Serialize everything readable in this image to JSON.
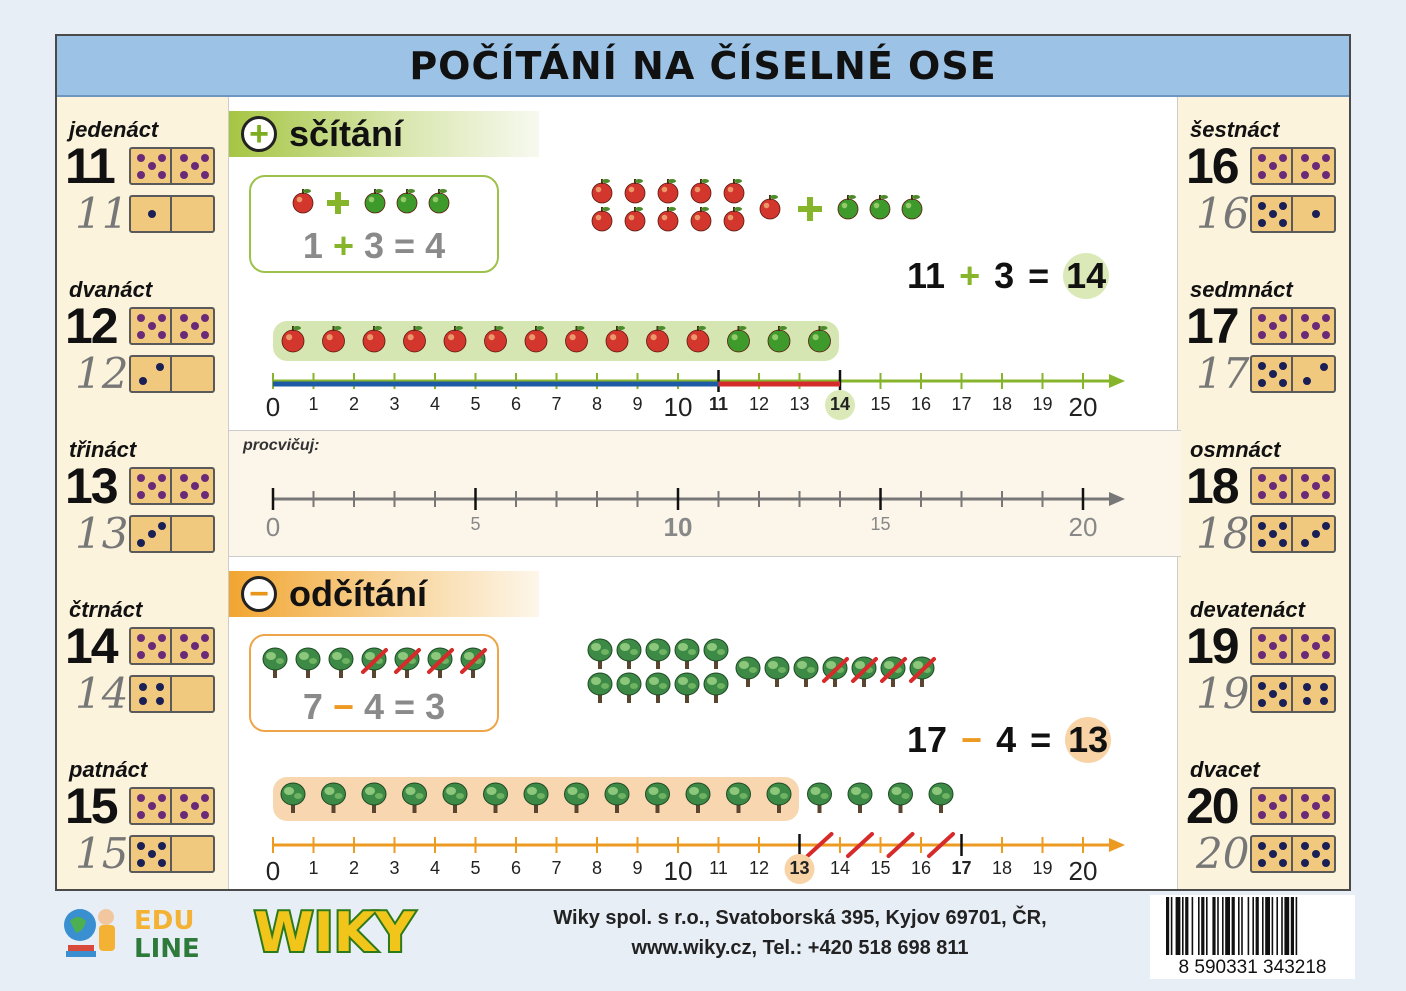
{
  "header": {
    "title": "POČÍTÁNÍ NA ČÍSELNÉ OSE"
  },
  "numbers_left": [
    {
      "word": "jedenáct",
      "number": "11",
      "hand": "11",
      "top_pips": 5,
      "bottom_pips": 1
    },
    {
      "word": "dvanáct",
      "number": "12",
      "hand": "12",
      "top_pips": 5,
      "bottom_pips": 2
    },
    {
      "word": "třináct",
      "number": "13",
      "hand": "13",
      "top_pips": 5,
      "bottom_pips": 3
    },
    {
      "word": "čtrnáct",
      "number": "14",
      "hand": "14",
      "top_pips": 5,
      "bottom_pips": 4
    },
    {
      "word": "patnáct",
      "number": "15",
      "hand": "15",
      "top_pips": 5,
      "bottom_pips": 5
    }
  ],
  "numbers_right": [
    {
      "word": "šestnáct",
      "number": "16",
      "hand": "16",
      "top_pips": 5,
      "bottom_pips": 6
    },
    {
      "word": "sedmnáct",
      "number": "17",
      "hand": "17",
      "top_pips": 5,
      "bottom_pips": 7
    },
    {
      "word": "osmnáct",
      "number": "18",
      "hand": "18",
      "top_pips": 5,
      "bottom_pips": 8
    },
    {
      "word": "devatenáct",
      "number": "19",
      "hand": "19",
      "top_pips": 5,
      "bottom_pips": 9
    },
    {
      "word": "dvacet",
      "number": "20",
      "hand": "20",
      "top_pips": 5,
      "bottom_pips": 10
    }
  ],
  "addition": {
    "heading": "sčítání",
    "icon": "plus-icon",
    "example": {
      "a": "1",
      "op": "+",
      "b": "3",
      "eq": "=",
      "res": "4"
    },
    "equation": {
      "a": "11",
      "op": "+",
      "b": "3",
      "eq": "=",
      "res": "14"
    },
    "axis_labels": [
      "0",
      "1",
      "2",
      "3",
      "4",
      "5",
      "6",
      "7",
      "8",
      "9",
      "10",
      "11",
      "12",
      "13",
      "14",
      "15",
      "16",
      "17",
      "18",
      "19",
      "20"
    ]
  },
  "practice": {
    "label": "procvičuj:",
    "axis_labels": [
      "0",
      "5",
      "10",
      "15",
      "20"
    ]
  },
  "subtraction": {
    "heading": "odčítání",
    "icon": "minus-icon",
    "example": {
      "a": "7",
      "op": "−",
      "b": "4",
      "eq": "=",
      "res": "3"
    },
    "equation": {
      "a": "17",
      "op": "−",
      "b": "4",
      "eq": "=",
      "res": "13"
    },
    "axis_labels": [
      "0",
      "1",
      "2",
      "3",
      "4",
      "5",
      "6",
      "7",
      "8",
      "9",
      "10",
      "11",
      "12",
      "13",
      "14",
      "15",
      "16",
      "17",
      "18",
      "19",
      "20"
    ]
  },
  "footer": {
    "company_line1": "Wiky spol. s r.o., Svatoborská 395, Kyjov 69701, ČR,",
    "company_line2": "www.wiky.cz, Tel.: +420 518 698 811",
    "barcode": "8 590331 343218",
    "logo_edu_line1": "EDU",
    "logo_edu_line2": "LINE",
    "logo_wiky": "WIKY"
  },
  "colors": {
    "green": "#86b52b",
    "orange": "#ec9a21",
    "blue_segment": "#1c5aa6",
    "red_segment": "#d62b2b",
    "header_bg": "#9cc3e6",
    "side_bg": "#fbf3dc"
  }
}
